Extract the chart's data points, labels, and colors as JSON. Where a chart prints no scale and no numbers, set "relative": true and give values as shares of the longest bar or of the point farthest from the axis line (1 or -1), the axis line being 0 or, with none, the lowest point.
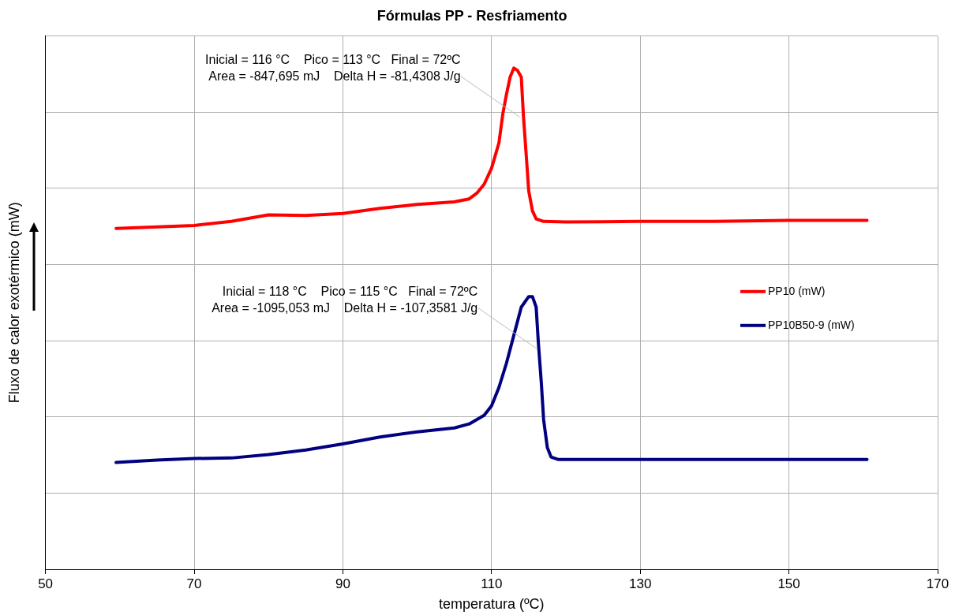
{
  "chart_data": {
    "type": "line",
    "title": "Fórmulas PP - Resfriamento",
    "xlabel": "temperatura (ºC)",
    "ylabel": "Fluxo de calor exotérmico (mW)",
    "relative": true,
    "xlim": [
      50,
      170
    ],
    "xticks": [
      50,
      70,
      90,
      110,
      130,
      150,
      170
    ],
    "grid": true,
    "legend": "right",
    "marker": "none",
    "line_style": "solid",
    "series": [
      {
        "name": "PP10 (mW)",
        "color": "#ff0000",
        "x": [
          59.5,
          70,
          75,
          80,
          85,
          90,
          95,
          100,
          105,
          107,
          108,
          109,
          110,
          111,
          111.5,
          112,
          112.5,
          113,
          113.5,
          114,
          114.3,
          114.7,
          115,
          115.5,
          116,
          117,
          120,
          130,
          140,
          150,
          160.5
        ],
        "values": [
          0.68,
          0.686,
          0.694,
          0.707,
          0.706,
          0.71,
          0.72,
          0.728,
          0.733,
          0.739,
          0.75,
          0.768,
          0.8,
          0.851,
          0.907,
          0.947,
          0.982,
          1,
          0.995,
          0.982,
          0.902,
          0.819,
          0.755,
          0.715,
          0.699,
          0.694,
          0.693,
          0.694,
          0.694,
          0.696,
          0.696
        ]
      },
      {
        "name": "PP10B50-9 (mW)",
        "color": "#000080",
        "x": [
          59.5,
          65,
          70,
          75,
          80,
          85,
          90,
          95,
          100,
          105,
          107,
          109,
          110,
          111,
          112,
          113,
          114,
          115,
          115.5,
          116,
          116.3,
          116.7,
          117,
          117.5,
          118,
          119,
          120,
          130,
          140,
          160.5
        ],
        "values": [
          0.213,
          0.218,
          0.221,
          0.222,
          0.229,
          0.238,
          0.25,
          0.264,
          0.274,
          0.282,
          0.29,
          0.307,
          0.326,
          0.363,
          0.411,
          0.467,
          0.523,
          0.544,
          0.544,
          0.523,
          0.451,
          0.371,
          0.299,
          0.243,
          0.224,
          0.219,
          0.219,
          0.219,
          0.219,
          0.219
        ]
      }
    ],
    "annotations": [
      {
        "text": "Inicial = 116 °C    Pico = 113 °C   Final = 72ºC\nArea = -847,695 mJ    Delta H = -81,4308 J/g",
        "x": 113.8,
        "y": 0.902
      },
      {
        "text": "Inicial = 118 °C    Pico = 115 °C   Final = 72ºC\nArea = -1095,053 mJ    Delta H = -107,3581 J/g",
        "x": 116.1,
        "y": 0.44
      }
    ]
  }
}
